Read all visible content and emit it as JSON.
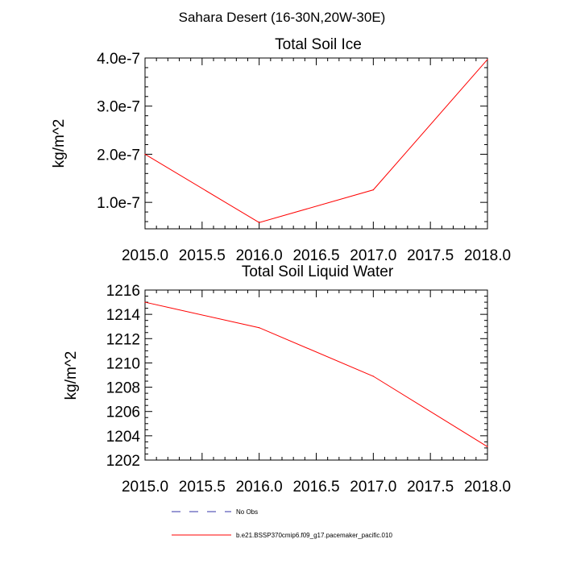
{
  "figure": {
    "title": "Sahara Desert (16-30N,20W-30E)"
  },
  "colors": {
    "series_line": "#ff0000",
    "obs_line": "#3333aa",
    "axes": "#000000"
  },
  "legend": {
    "placement": "bottom-center",
    "items": [
      {
        "label": "No Obs",
        "color": "#3333aa",
        "style": "dashed"
      },
      {
        "label": "b.e21.BSSP370cmip6.f09_g17.pacemaker_pacific.010",
        "color": "#ff0000",
        "style": "solid"
      }
    ]
  },
  "chart_data": [
    {
      "type": "line",
      "title": "Total Soil Ice",
      "xlabel": "",
      "ylabel": "kg/m^2",
      "xlim": [
        2015.0,
        2018.0
      ],
      "ylim": [
        4.5e-08,
        4e-07
      ],
      "xticks": [
        2015.0,
        2015.5,
        2016.0,
        2016.5,
        2017.0,
        2017.5,
        2018.0
      ],
      "xtick_labels": [
        "2015.0",
        "2015.5",
        "2016.0",
        "2016.5",
        "2017.0",
        "2017.5",
        "2018.0"
      ],
      "yticks": [
        1e-07,
        2e-07,
        3e-07,
        4e-07
      ],
      "ytick_labels": [
        "1.0e-7",
        "2.0e-7",
        "3.0e-7",
        "4.0e-7"
      ],
      "grid": false,
      "series": [
        {
          "x": [
            2015.0,
            2016.0,
            2017.0,
            2018.0
          ],
          "values": [
            2e-07,
            5.8e-08,
            1.26e-07,
            3.97e-07
          ]
        }
      ]
    },
    {
      "type": "line",
      "title": "Total Soil Liquid Water",
      "xlabel": "",
      "ylabel": "kg/m^2",
      "xlim": [
        2015.0,
        2018.0
      ],
      "ylim": [
        1202,
        1216
      ],
      "xticks": [
        2015.0,
        2015.5,
        2016.0,
        2016.5,
        2017.0,
        2017.5,
        2018.0
      ],
      "xtick_labels": [
        "2015.0",
        "2015.5",
        "2016.0",
        "2016.5",
        "2017.0",
        "2017.5",
        "2018.0"
      ],
      "yticks": [
        1202,
        1204,
        1206,
        1208,
        1210,
        1212,
        1214,
        1216
      ],
      "ytick_labels": [
        "1202",
        "1204",
        "1206",
        "1208",
        "1210",
        "1212",
        "1214",
        "1216"
      ],
      "grid": false,
      "series": [
        {
          "x": [
            2015.0,
            2016.0,
            2017.0,
            2018.0
          ],
          "values": [
            1215.0,
            1212.9,
            1208.9,
            1203.1
          ]
        }
      ]
    }
  ]
}
